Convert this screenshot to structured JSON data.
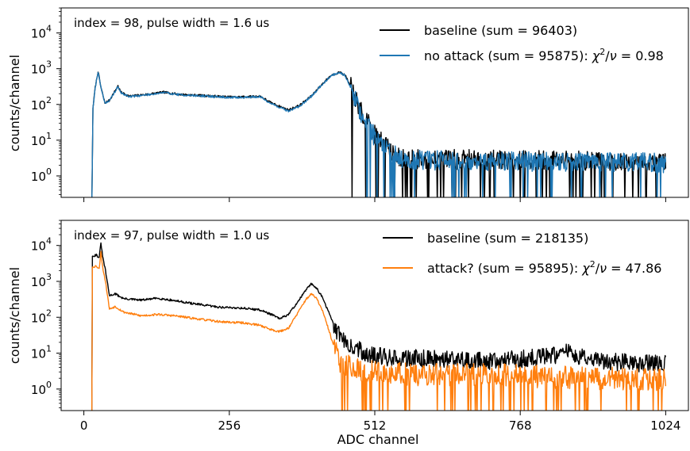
{
  "chart_data": [
    {
      "type": "line",
      "annotation": "index = 98, pulse width = 1.6 us",
      "ylabel": "counts/channel",
      "xlabel": "",
      "y_scale": "log",
      "xlim": [
        -40,
        1064
      ],
      "ylim_log10": [
        -0.6,
        4.7
      ],
      "x_ticks": [
        0,
        256,
        512,
        768,
        1024
      ],
      "x_tick_labels_shown": false,
      "y_ticks": [
        {
          "exp": 0,
          "label": "10",
          "sup": "0"
        },
        {
          "exp": 1,
          "label": "10",
          "sup": "1"
        },
        {
          "exp": 2,
          "label": "10",
          "sup": "2"
        },
        {
          "exp": 3,
          "label": "10",
          "sup": "3"
        },
        {
          "exp": 4,
          "label": "10",
          "sup": "4"
        }
      ],
      "legend_position": "top-right",
      "legend": [
        {
          "text": "baseline (sum = 96403)",
          "chi": "",
          "color": "#000000"
        },
        {
          "text": "no attack (sum = 95875): ",
          "chi": "0.98",
          "color": "#1f77b4"
        }
      ],
      "series": [
        {
          "name": "baseline (sum = 96403)",
          "color": "#000000",
          "points": [
            [
              14,
              0.15
            ],
            [
              16,
              80
            ],
            [
              20,
              300
            ],
            [
              25,
              850
            ],
            [
              30,
              300
            ],
            [
              37,
              110
            ],
            [
              45,
              130
            ],
            [
              55,
              240
            ],
            [
              60,
              330
            ],
            [
              65,
              220
            ],
            [
              80,
              170
            ],
            [
              110,
              190
            ],
            [
              140,
              220
            ],
            [
              170,
              190
            ],
            [
              200,
              180
            ],
            [
              230,
              170
            ],
            [
              260,
              160
            ],
            [
              290,
              165
            ],
            [
              310,
              170
            ],
            [
              330,
              110
            ],
            [
              360,
              70
            ],
            [
              380,
              95
            ],
            [
              400,
              170
            ],
            [
              420,
              380
            ],
            [
              435,
              650
            ],
            [
              450,
              800
            ],
            [
              460,
              650
            ],
            [
              470,
              300
            ],
            [
              480,
              120
            ],
            [
              490,
              50
            ],
            [
              500,
              30
            ],
            [
              510,
              15
            ],
            [
              520,
              12
            ],
            [
              530,
              8
            ],
            [
              540,
              5
            ],
            [
              560,
              3
            ],
            [
              1024,
              2.5
            ]
          ],
          "noise": {
            "start": 470,
            "end": 1026,
            "amp": 0.28,
            "seed": 7,
            "drops": 0.07
          }
        },
        {
          "name": "no attack (sum = 95875)",
          "color": "#1f77b4",
          "points": [
            [
              14,
              0.15
            ],
            [
              16,
              80
            ],
            [
              20,
              300
            ],
            [
              25,
              820
            ],
            [
              30,
              300
            ],
            [
              37,
              110
            ],
            [
              45,
              125
            ],
            [
              55,
              230
            ],
            [
              60,
              320
            ],
            [
              65,
              210
            ],
            [
              80,
              165
            ],
            [
              110,
              185
            ],
            [
              140,
              215
            ],
            [
              170,
              185
            ],
            [
              200,
              175
            ],
            [
              230,
              165
            ],
            [
              260,
              155
            ],
            [
              290,
              160
            ],
            [
              310,
              165
            ],
            [
              330,
              105
            ],
            [
              360,
              65
            ],
            [
              380,
              90
            ],
            [
              400,
              165
            ],
            [
              420,
              370
            ],
            [
              435,
              640
            ],
            [
              450,
              790
            ],
            [
              460,
              640
            ],
            [
              470,
              290
            ],
            [
              480,
              115
            ],
            [
              490,
              45
            ],
            [
              500,
              28
            ],
            [
              510,
              14
            ],
            [
              520,
              11
            ],
            [
              530,
              7
            ],
            [
              540,
              4.5
            ],
            [
              560,
              2.8
            ],
            [
              1024,
              2.3
            ]
          ],
          "noise": {
            "start": 470,
            "end": 1026,
            "amp": 0.28,
            "seed": 19,
            "drops": 0.07
          }
        }
      ]
    },
    {
      "type": "line",
      "annotation": "index = 97, pulse width = 1.0 us",
      "ylabel": "counts/channel",
      "xlabel": "ADC channel",
      "y_scale": "log",
      "xlim": [
        -40,
        1064
      ],
      "ylim_log10": [
        -0.6,
        4.7
      ],
      "x_ticks": [
        0,
        256,
        512,
        768,
        1024
      ],
      "x_tick_labels": [
        "0",
        "256",
        "512",
        "768",
        "1024"
      ],
      "y_ticks": [
        {
          "exp": 0,
          "label": "10",
          "sup": "0"
        },
        {
          "exp": 1,
          "label": "10",
          "sup": "1"
        },
        {
          "exp": 2,
          "label": "10",
          "sup": "2"
        },
        {
          "exp": 3,
          "label": "10",
          "sup": "3"
        },
        {
          "exp": 4,
          "label": "10",
          "sup": "4"
        }
      ],
      "legend_position": "top-right",
      "legend": [
        {
          "text": "baseline (sum = 218135)",
          "chi": "",
          "color": "#000000"
        },
        {
          "text": "attack? (sum = 95895): ",
          "chi": "47.86",
          "color": "#ff7f0e"
        }
      ],
      "series": [
        {
          "name": "baseline (sum = 218135)",
          "color": "#000000",
          "points": [
            [
              14,
              0.2
            ],
            [
              15,
              5000
            ],
            [
              22,
              5500
            ],
            [
              27,
              4500
            ],
            [
              30,
              12000
            ],
            [
              33,
              5000
            ],
            [
              38,
              2000
            ],
            [
              45,
              400
            ],
            [
              55,
              450
            ],
            [
              70,
              330
            ],
            [
              100,
              300
            ],
            [
              130,
              340
            ],
            [
              160,
              290
            ],
            [
              200,
              230
            ],
            [
              240,
              190
            ],
            [
              280,
              180
            ],
            [
              310,
              160
            ],
            [
              330,
              120
            ],
            [
              345,
              90
            ],
            [
              360,
              120
            ],
            [
              375,
              250
            ],
            [
              390,
              550
            ],
            [
              400,
              850
            ],
            [
              410,
              650
            ],
            [
              420,
              350
            ],
            [
              430,
              150
            ],
            [
              440,
              60
            ],
            [
              450,
              30
            ],
            [
              470,
              15
            ],
            [
              500,
              10
            ],
            [
              520,
              8
            ],
            [
              600,
              7
            ],
            [
              700,
              6
            ],
            [
              780,
              7
            ],
            [
              840,
              9
            ],
            [
              850,
              11
            ],
            [
              870,
              8
            ],
            [
              900,
              6
            ],
            [
              1024,
              5
            ]
          ],
          "noise": {
            "start": 440,
            "end": 1026,
            "amp": 0.25,
            "seed": 31,
            "drops": 0.0
          }
        },
        {
          "name": "attack? (sum = 95895)",
          "color": "#ff7f0e",
          "points": [
            [
              14,
              0.2
            ],
            [
              15,
              2500
            ],
            [
              22,
              2700
            ],
            [
              27,
              2200
            ],
            [
              30,
              7000
            ],
            [
              33,
              2500
            ],
            [
              38,
              1000
            ],
            [
              45,
              170
            ],
            [
              55,
              200
            ],
            [
              70,
              140
            ],
            [
              100,
              110
            ],
            [
              130,
              120
            ],
            [
              160,
              110
            ],
            [
              200,
              90
            ],
            [
              240,
              75
            ],
            [
              280,
              70
            ],
            [
              310,
              60
            ],
            [
              330,
              45
            ],
            [
              345,
              40
            ],
            [
              360,
              50
            ],
            [
              375,
              120
            ],
            [
              390,
              300
            ],
            [
              400,
              450
            ],
            [
              410,
              330
            ],
            [
              420,
              150
            ],
            [
              430,
              50
            ],
            [
              440,
              15
            ],
            [
              450,
              6
            ],
            [
              470,
              4
            ],
            [
              500,
              3
            ],
            [
              600,
              2.5
            ],
            [
              760,
              2.5
            ],
            [
              800,
              2.2
            ],
            [
              900,
              2
            ],
            [
              1024,
              1.8
            ]
          ],
          "noise": {
            "start": 440,
            "end": 1026,
            "amp": 0.32,
            "seed": 53,
            "drops": 0.12
          }
        }
      ]
    }
  ]
}
